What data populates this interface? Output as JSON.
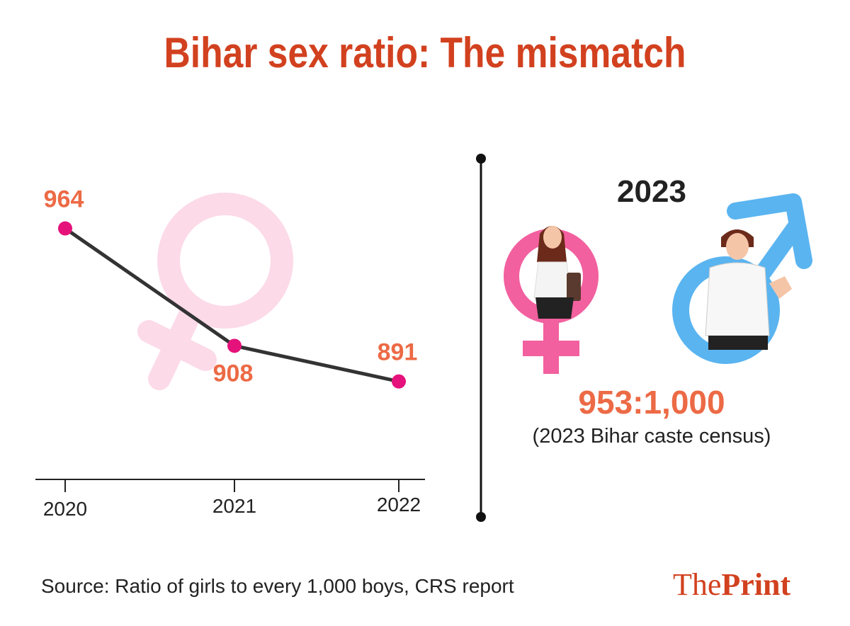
{
  "title": "Bihar sex ratio: The mismatch",
  "chart_data": {
    "type": "line",
    "x": [
      "2020",
      "2021",
      "2022"
    ],
    "series": [
      {
        "values": [
          964,
          908,
          891
        ]
      }
    ],
    "data_labels": [
      "964",
      "908",
      "891"
    ],
    "ylim": [
      850,
      975
    ],
    "grid": false,
    "line_color": "#333333",
    "marker_color": "#e5127b"
  },
  "comparison": {
    "year": "2023",
    "ratio": "953:1,000",
    "note": "(2023 Bihar caste census)"
  },
  "footer": {
    "source": "Source: Ratio of girls to every 1,000 boys, CRS report",
    "brand_part1": "The",
    "brand_part2": "Print"
  },
  "colors": {
    "title": "#d2411f",
    "value": "#ec6a45",
    "female_symbol_bg": "#fcd6e6",
    "female_symbol": "#f2609f",
    "male_symbol": "#5ab4f0"
  },
  "icons": [
    "female-symbol-icon",
    "woman-illustration",
    "male-symbol-icon",
    "man-illustration"
  ]
}
